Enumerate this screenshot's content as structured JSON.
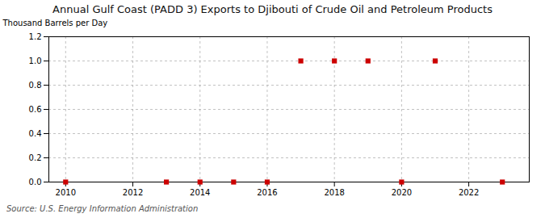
{
  "chart_data": {
    "type": "scatter",
    "title": "Annual Gulf Coast (PADD 3) Exports to Djibouti of Crude Oil and Petroleum Products",
    "ylabel": "Thousand Barrels per Day",
    "source": "Source: U.S. Energy Information Administration",
    "x": [
      2010,
      2013,
      2014,
      2015,
      2016,
      2017,
      2018,
      2019,
      2020,
      2021,
      2023
    ],
    "values": [
      0.0,
      0.0,
      0.0,
      0.0,
      0.0,
      1.0,
      1.0,
      1.0,
      0.0,
      1.0,
      0.0
    ],
    "color": "#cc0000",
    "marker": "square",
    "xlim": [
      2009.5,
      2023.8
    ],
    "ylim": [
      0.0,
      1.2
    ],
    "xticks": [
      2010,
      2012,
      2014,
      2016,
      2018,
      2020,
      2022
    ],
    "yticks": [
      {
        "value": 0,
        "label": "0.0"
      },
      0.2,
      0.4,
      0.6,
      0.8,
      {
        "value": 1,
        "label": "1.0"
      },
      1.2
    ],
    "grid": true
  }
}
